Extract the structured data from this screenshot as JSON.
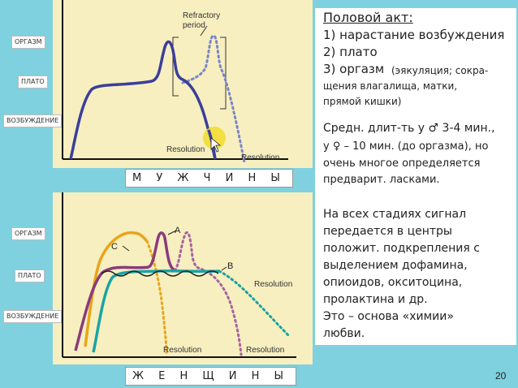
{
  "top_chart": {
    "stage_labels": [
      "ОРГАЗМ",
      "ПЛАТО",
      "ВОЗБУЖДЕНИЕ"
    ],
    "annotations": {
      "refractory": "Refractory",
      "period": "period",
      "resolution_1": "Resolution",
      "resolution_2": "Resolution"
    },
    "caption": "М У Ж Ч И Н Ы"
  },
  "bottom_chart": {
    "stage_labels": [
      "ОРГАЗМ",
      "ПЛАТО",
      "ВОЗБУЖДЕНИЕ"
    ],
    "annotations": {
      "a": "A",
      "b": "B",
      "c": "C",
      "resolution_right": "Resolution",
      "resolution_bottom_1": "Resolution",
      "resolution_bottom_2": "Resolution"
    },
    "caption": "Ж Е Н Щ И Н Ы"
  },
  "text": {
    "heading": "Половой акт:",
    "items": [
      "1) нарастание возбуждения",
      "2) плато",
      "3) оргазм"
    ],
    "orgasm_detail": [
      "(эякуляция; сокра-",
      "щения влагалища, матки,",
      "прямой кишки)"
    ],
    "duration": [
      "Средн. длит-ть у ♂ 3-4 мин.,",
      "у ♀ – 10 мин. (до оргазма), но",
      "очень многое определяется",
      "предварит. ласками."
    ],
    "signal": [
      "На всех стадиях сигнал",
      "передается в центры",
      "положит. подкрепления с",
      "выделением дофамина,",
      "опиоидов, окситоцина,",
      "пролактина и др.",
      "Это – основа «химии»",
      "любви."
    ]
  },
  "page_number": "20",
  "colors": {
    "male_curve": "#3b3f9a",
    "male_dotted": "#7a86c8",
    "female_a": "#8a3b7c",
    "female_b": "#1aa3a3",
    "female_c": "#e8a51a",
    "panel_bg": "#f7efc0",
    "page_bg": "#7fd1df"
  }
}
